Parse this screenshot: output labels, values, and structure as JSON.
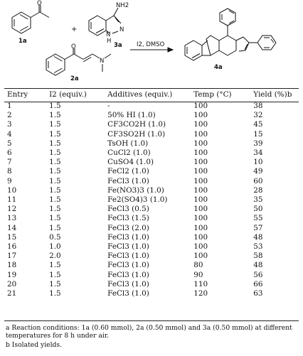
{
  "scheme": {
    "compound_labels": [
      "1a",
      "3a",
      "2a",
      "4a"
    ],
    "reagents": "I2, DMSO",
    "plus": "+",
    "atom_labels": {
      "o1": "O",
      "o2": "O",
      "n_dim": "N",
      "nh2": "NH2",
      "n3": "N",
      "nh": "N",
      "h": "H"
    }
  },
  "table": {
    "headers": [
      "Entry",
      "I2 (equiv.)",
      "Additives (equiv.)",
      "Temp (°C)",
      "Yield (%)b"
    ],
    "rows": [
      [
        "1",
        "1.5",
        "-",
        "100",
        "38"
      ],
      [
        "2",
        "1.5",
        "50% HI (1.0)",
        "100",
        "32"
      ],
      [
        "3",
        "1.5",
        "CF3CO2H (1.0)",
        "100",
        "45"
      ],
      [
        "4",
        "1.5",
        "CF3SO2H (1.0)",
        "100",
        "15"
      ],
      [
        "5",
        "1.5",
        "TsOH (1.0)",
        "100",
        "39"
      ],
      [
        "6",
        "1.5",
        "CuCl2 (1.0)",
        "100",
        "34"
      ],
      [
        "7",
        "1.5",
        "CuSO4 (1.0)",
        "100",
        "10"
      ],
      [
        "8",
        "1.5",
        "FeCl2 (1.0)",
        "100",
        "49"
      ],
      [
        "9",
        "1.5",
        "FeCl3 (1.0)",
        "100",
        "60"
      ],
      [
        "10",
        "1.5",
        "Fe(NO3)3 (1.0)",
        "100",
        "28"
      ],
      [
        "11",
        "1.5",
        "Fe2(SO4)3 (1.0)",
        "100",
        "35"
      ],
      [
        "12",
        "1.5",
        "FeCl3 (0.5)",
        "100",
        "50"
      ],
      [
        "13",
        "1.5",
        "FeCl3 (1.5)",
        "100",
        "55"
      ],
      [
        "14",
        "1.5",
        "FeCl3 (2.0)",
        "100",
        "57"
      ],
      [
        "15",
        "0.5",
        "FeCl3 (1.0)",
        "100",
        "48"
      ],
      [
        "16",
        "1.0",
        "FeCl3 (1.0)",
        "100",
        "53"
      ],
      [
        "17",
        "2.0",
        "FeCl3 (1.0)",
        "100",
        "58"
      ],
      [
        "18",
        "1.5",
        "FeCl3 (1.0)",
        "80",
        "48"
      ],
      [
        "19",
        "1.5",
        "FeCl3 (1.0)",
        "90",
        "56"
      ],
      [
        "20",
        "1.5",
        "FeCl3 (1.0)",
        "110",
        "66"
      ],
      [
        "21",
        "1.5",
        "FeCl3 (1.0)",
        "120",
        "63"
      ]
    ]
  },
  "footnotes": {
    "a": "a Reaction conditions: 1a (0.60 mmol), 2a (0.50 mmol) and 3a (0.50 mmol) at different temperatures for 8 h under air.",
    "b": "b Isolated yields."
  }
}
